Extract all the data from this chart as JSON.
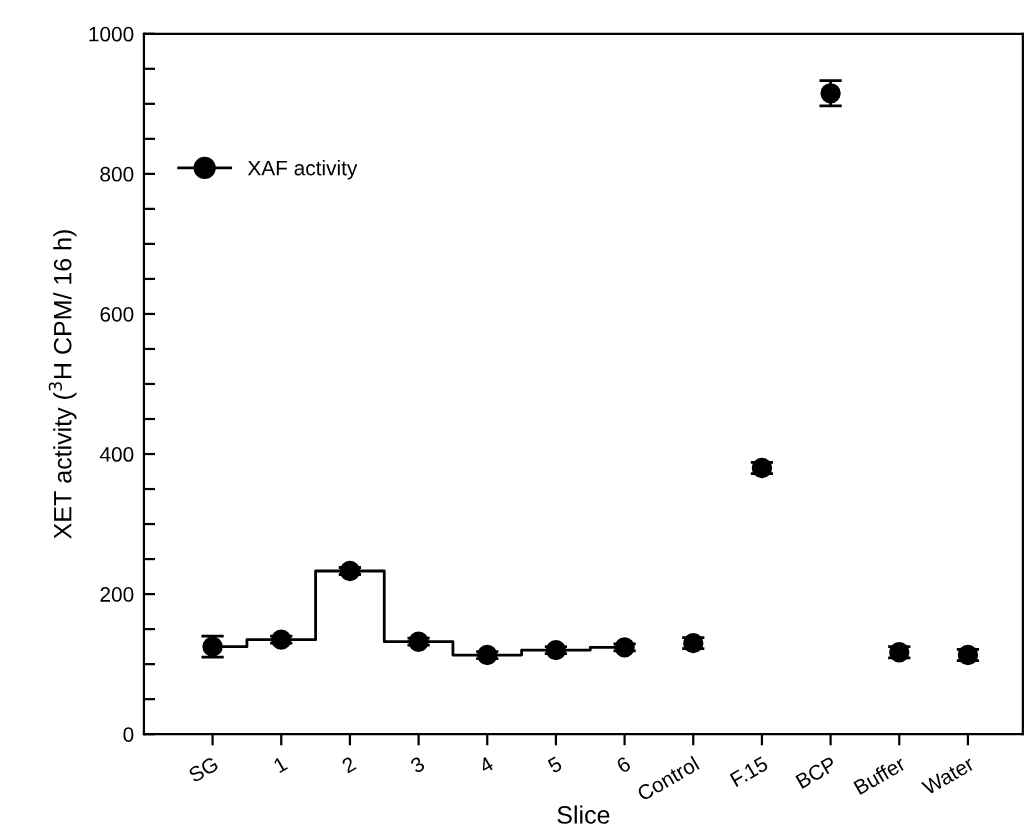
{
  "chart_data": {
    "type": "scatter",
    "xlabel": "Slice",
    "ylabel": "XET activity ($^{3}$H CPM/ 16 h)",
    "categories": [
      "SG",
      "1",
      "2",
      "3",
      "4",
      "5",
      "6",
      "Control",
      "F.15",
      "BCP",
      "Buffer",
      "Water"
    ],
    "series": [
      {
        "name": "XAF activity",
        "color": "#000000",
        "marker": "circle",
        "line_style": "solid",
        "values": [
          125,
          135,
          233,
          132,
          113,
          120,
          124,
          130,
          380,
          915,
          117,
          113
        ],
        "errors": [
          15,
          5,
          5,
          5,
          5,
          5,
          5,
          8,
          8,
          18,
          8,
          8
        ]
      },
      {
        "type": "step",
        "color": "#000000",
        "values": [
          125,
          135,
          233,
          132,
          113,
          120,
          124,
          null,
          null,
          null,
          null,
          null
        ]
      }
    ],
    "ylim": [
      0,
      1000
    ],
    "yticks": [
      0,
      {
        "value": 50,
        "label": null
      },
      200,
      {
        "value": 100,
        "label": null
      },
      {
        "value": 150,
        "label": null
      },
      {
        "value": 250,
        "label": null
      },
      {
        "value": 300,
        "label": null
      },
      {
        "value": 350,
        "label": null
      },
      400,
      {
        "value": 450,
        "label": null
      },
      {
        "value": 500,
        "label": null
      },
      {
        "value": 550,
        "label": null
      },
      600,
      {
        "value": 650,
        "label": null
      },
      {
        "value": 700,
        "label": null
      },
      {
        "value": 750,
        "label": null
      },
      800,
      {
        "value": 850,
        "label": null
      },
      {
        "value": 900,
        "label": null
      },
      {
        "value": 950,
        "label": null
      },
      1000
    ],
    "grid": false,
    "legend": "top left"
  }
}
